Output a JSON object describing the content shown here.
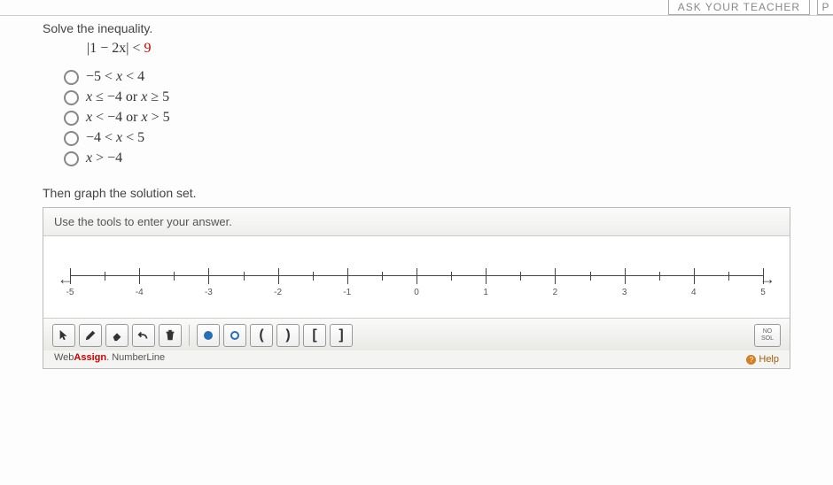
{
  "topbar": {
    "teacher_btn": "ASK YOUR TEACHER",
    "p_btn": "P"
  },
  "question": {
    "prompt": "Solve the inequality.",
    "inequality_left": "|1 − 2",
    "inequality_var": "x",
    "inequality_mid": "| < ",
    "inequality_right": "9",
    "options": [
      "−5 < x < 4",
      "x ≤ −4 or x ≥ 5",
      "x < −4 or x > 5",
      "−4 < x < 5",
      "x > −4"
    ],
    "then": "Then graph the solution set."
  },
  "numberline": {
    "header": "Use the tools to enter your answer.",
    "min": -5,
    "max": 5,
    "major_step": 1,
    "minor_per_major": 2,
    "tick_labels": [
      "-5",
      "-4",
      "-3",
      "-2",
      "-1",
      "0",
      "1",
      "2",
      "3",
      "4",
      "5"
    ],
    "axis_color": "#444444",
    "background": "#ffffff",
    "toolbar": {
      "tools": [
        {
          "name": "pointer-tool",
          "glyph": "pointer"
        },
        {
          "name": "draw-tool",
          "glyph": "pencil"
        },
        {
          "name": "erase-tool",
          "glyph": "eraser"
        },
        {
          "name": "undo-tool",
          "glyph": "undo"
        },
        {
          "name": "clear-tool",
          "glyph": "trash"
        }
      ],
      "point_tools": [
        {
          "name": "closed-point-tool",
          "glyph": "●"
        },
        {
          "name": "open-point-tool",
          "glyph": "○"
        },
        {
          "name": "open-left-paren-tool",
          "glyph": "("
        },
        {
          "name": "open-right-paren-tool",
          "glyph": ")"
        },
        {
          "name": "closed-left-bracket-tool",
          "glyph": "["
        },
        {
          "name": "closed-right-bracket-tool",
          "glyph": "]"
        }
      ],
      "nosol_top": "NO",
      "nosol_bot": "SOL"
    },
    "brand_web": "Web",
    "brand_assign": "Assign",
    "brand_rest": ". NumberLine",
    "help_label": "Help"
  }
}
